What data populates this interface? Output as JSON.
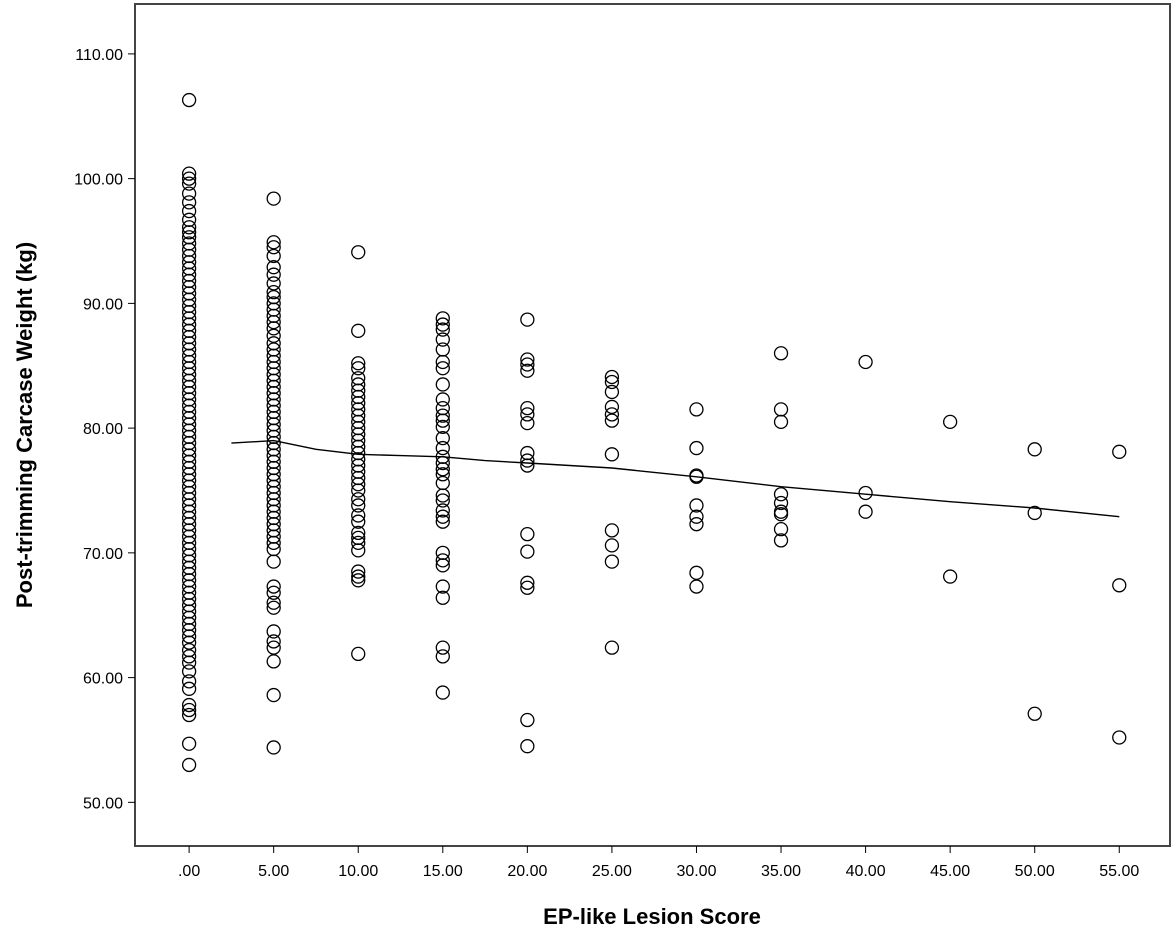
{
  "chart_data": {
    "type": "scatter",
    "title": "",
    "xlabel": "EP-like Lesion Score",
    "ylabel": "Post-trimming Carcase Weight (kg)",
    "xlim": [
      -3.2,
      58.0
    ],
    "ylim": [
      46.5,
      114.0
    ],
    "x_ticks": [
      0,
      5,
      10,
      15,
      20,
      25,
      30,
      35,
      40,
      45,
      50,
      55
    ],
    "x_tick_labels": [
      ".00",
      "5.00",
      "10.00",
      "15.00",
      "20.00",
      "25.00",
      "30.00",
      "35.00",
      "40.00",
      "45.00",
      "50.00",
      "55.00"
    ],
    "y_ticks": [
      50,
      60,
      70,
      80,
      90,
      100,
      110
    ],
    "y_tick_labels": [
      "50.00",
      "60.00",
      "70.00",
      "80.00",
      "90.00",
      "100.00",
      "110.00"
    ],
    "grid": false,
    "legend": "none",
    "marker": "open-circle",
    "colors": {
      "marker": "#000000",
      "line": "#000000",
      "frame": "#444444",
      "background": "#ffffff"
    },
    "series": [
      {
        "type": "scatter",
        "points": [
          [
            0,
            106.3
          ],
          [
            0,
            100.4
          ],
          [
            0,
            100.0
          ],
          [
            0,
            99.6
          ],
          [
            0,
            98.8
          ],
          [
            0,
            98.1
          ],
          [
            0,
            97.4
          ],
          [
            0,
            96.7
          ],
          [
            0,
            96.1
          ],
          [
            0,
            95.7
          ],
          [
            0,
            95.3
          ],
          [
            0,
            94.8
          ],
          [
            0,
            94.3
          ],
          [
            0,
            93.8
          ],
          [
            0,
            93.3
          ],
          [
            0,
            92.8
          ],
          [
            0,
            92.3
          ],
          [
            0,
            91.8
          ],
          [
            0,
            91.3
          ],
          [
            0,
            90.8
          ],
          [
            0,
            90.3
          ],
          [
            0,
            89.8
          ],
          [
            0,
            89.3
          ],
          [
            0,
            88.8
          ],
          [
            0,
            88.3
          ],
          [
            0,
            87.8
          ],
          [
            0,
            87.3
          ],
          [
            0,
            86.8
          ],
          [
            0,
            86.3
          ],
          [
            0,
            85.8
          ],
          [
            0,
            85.3
          ],
          [
            0,
            84.8
          ],
          [
            0,
            84.3
          ],
          [
            0,
            83.8
          ],
          [
            0,
            83.3
          ],
          [
            0,
            82.8
          ],
          [
            0,
            82.3
          ],
          [
            0,
            81.8
          ],
          [
            0,
            81.3
          ],
          [
            0,
            80.8
          ],
          [
            0,
            80.3
          ],
          [
            0,
            79.8
          ],
          [
            0,
            79.3
          ],
          [
            0,
            78.8
          ],
          [
            0,
            78.3
          ],
          [
            0,
            77.8
          ],
          [
            0,
            77.3
          ],
          [
            0,
            76.8
          ],
          [
            0,
            76.3
          ],
          [
            0,
            75.8
          ],
          [
            0,
            75.3
          ],
          [
            0,
            74.8
          ],
          [
            0,
            74.3
          ],
          [
            0,
            73.8
          ],
          [
            0,
            73.3
          ],
          [
            0,
            72.8
          ],
          [
            0,
            72.3
          ],
          [
            0,
            71.8
          ],
          [
            0,
            71.3
          ],
          [
            0,
            70.8
          ],
          [
            0,
            70.3
          ],
          [
            0,
            69.8
          ],
          [
            0,
            69.3
          ],
          [
            0,
            68.8
          ],
          [
            0,
            68.3
          ],
          [
            0,
            67.8
          ],
          [
            0,
            67.3
          ],
          [
            0,
            66.8
          ],
          [
            0,
            66.3
          ],
          [
            0,
            65.8
          ],
          [
            0,
            65.3
          ],
          [
            0,
            64.8
          ],
          [
            0,
            64.3
          ],
          [
            0,
            63.8
          ],
          [
            0,
            63.3
          ],
          [
            0,
            62.8
          ],
          [
            0,
            62.2
          ],
          [
            0,
            61.7
          ],
          [
            0,
            61.2
          ],
          [
            0,
            60.5
          ],
          [
            0,
            59.7
          ],
          [
            0,
            59.1
          ],
          [
            0,
            57.8
          ],
          [
            0,
            57.4
          ],
          [
            0,
            57.0
          ],
          [
            0,
            54.7
          ],
          [
            0,
            53.0
          ],
          [
            5,
            98.4
          ],
          [
            5,
            94.9
          ],
          [
            5,
            94.5
          ],
          [
            5,
            93.8
          ],
          [
            5,
            92.9
          ],
          [
            5,
            92.3
          ],
          [
            5,
            91.6
          ],
          [
            5,
            90.9
          ],
          [
            5,
            90.5
          ],
          [
            5,
            90.0
          ],
          [
            5,
            89.5
          ],
          [
            5,
            89.0
          ],
          [
            5,
            88.5
          ],
          [
            5,
            88.0
          ],
          [
            5,
            87.4
          ],
          [
            5,
            86.8
          ],
          [
            5,
            86.3
          ],
          [
            5,
            85.8
          ],
          [
            5,
            85.3
          ],
          [
            5,
            84.8
          ],
          [
            5,
            84.3
          ],
          [
            5,
            83.8
          ],
          [
            5,
            83.3
          ],
          [
            5,
            82.8
          ],
          [
            5,
            82.3
          ],
          [
            5,
            81.8
          ],
          [
            5,
            81.3
          ],
          [
            5,
            80.8
          ],
          [
            5,
            80.3
          ],
          [
            5,
            79.8
          ],
          [
            5,
            79.3
          ],
          [
            5,
            78.8
          ],
          [
            5,
            78.3
          ],
          [
            5,
            77.8
          ],
          [
            5,
            77.3
          ],
          [
            5,
            76.8
          ],
          [
            5,
            76.3
          ],
          [
            5,
            75.8
          ],
          [
            5,
            75.3
          ],
          [
            5,
            74.8
          ],
          [
            5,
            74.3
          ],
          [
            5,
            73.8
          ],
          [
            5,
            73.3
          ],
          [
            5,
            72.8
          ],
          [
            5,
            72.3
          ],
          [
            5,
            71.8
          ],
          [
            5,
            71.3
          ],
          [
            5,
            70.8
          ],
          [
            5,
            70.3
          ],
          [
            5,
            69.3
          ],
          [
            5,
            67.3
          ],
          [
            5,
            66.8
          ],
          [
            5,
            66.0
          ],
          [
            5,
            65.6
          ],
          [
            5,
            63.7
          ],
          [
            5,
            62.9
          ],
          [
            5,
            62.4
          ],
          [
            5,
            61.3
          ],
          [
            5,
            58.6
          ],
          [
            5,
            54.4
          ],
          [
            10,
            94.1
          ],
          [
            10,
            87.8
          ],
          [
            10,
            85.2
          ],
          [
            10,
            84.8
          ],
          [
            10,
            84.0
          ],
          [
            10,
            83.5
          ],
          [
            10,
            83.0
          ],
          [
            10,
            82.5
          ],
          [
            10,
            82.0
          ],
          [
            10,
            81.5
          ],
          [
            10,
            81.0
          ],
          [
            10,
            80.5
          ],
          [
            10,
            80.0
          ],
          [
            10,
            79.5
          ],
          [
            10,
            79.0
          ],
          [
            10,
            78.5
          ],
          [
            10,
            78.0
          ],
          [
            10,
            77.5
          ],
          [
            10,
            77.0
          ],
          [
            10,
            76.5
          ],
          [
            10,
            76.0
          ],
          [
            10,
            75.5
          ],
          [
            10,
            75.0
          ],
          [
            10,
            74.3
          ],
          [
            10,
            73.8
          ],
          [
            10,
            73.0
          ],
          [
            10,
            72.5
          ],
          [
            10,
            71.6
          ],
          [
            10,
            71.2
          ],
          [
            10,
            70.8
          ],
          [
            10,
            70.2
          ],
          [
            10,
            68.5
          ],
          [
            10,
            68.1
          ],
          [
            10,
            67.8
          ],
          [
            10,
            61.9
          ],
          [
            15,
            88.8
          ],
          [
            15,
            88.3
          ],
          [
            15,
            87.9
          ],
          [
            15,
            87.1
          ],
          [
            15,
            86.3
          ],
          [
            15,
            85.3
          ],
          [
            15,
            84.8
          ],
          [
            15,
            83.5
          ],
          [
            15,
            82.3
          ],
          [
            15,
            81.6
          ],
          [
            15,
            81.0
          ],
          [
            15,
            80.6
          ],
          [
            15,
            80.1
          ],
          [
            15,
            79.2
          ],
          [
            15,
            78.4
          ],
          [
            15,
            77.7
          ],
          [
            15,
            77.2
          ],
          [
            15,
            76.7
          ],
          [
            15,
            76.3
          ],
          [
            15,
            75.6
          ],
          [
            15,
            74.6
          ],
          [
            15,
            74.2
          ],
          [
            15,
            73.4
          ],
          [
            15,
            72.9
          ],
          [
            15,
            72.5
          ],
          [
            15,
            70.0
          ],
          [
            15,
            69.4
          ],
          [
            15,
            69.0
          ],
          [
            15,
            67.3
          ],
          [
            15,
            66.4
          ],
          [
            15,
            62.4
          ],
          [
            15,
            61.7
          ],
          [
            15,
            58.8
          ],
          [
            20,
            88.7
          ],
          [
            20,
            85.5
          ],
          [
            20,
            85.1
          ],
          [
            20,
            84.6
          ],
          [
            20,
            81.6
          ],
          [
            20,
            81.1
          ],
          [
            20,
            80.4
          ],
          [
            20,
            78.0
          ],
          [
            20,
            77.4
          ],
          [
            20,
            77.0
          ],
          [
            20,
            71.5
          ],
          [
            20,
            70.1
          ],
          [
            20,
            67.6
          ],
          [
            20,
            67.2
          ],
          [
            20,
            56.6
          ],
          [
            20,
            54.5
          ],
          [
            25,
            84.1
          ],
          [
            25,
            83.7
          ],
          [
            25,
            82.9
          ],
          [
            25,
            81.7
          ],
          [
            25,
            81.1
          ],
          [
            25,
            80.6
          ],
          [
            25,
            77.9
          ],
          [
            25,
            71.8
          ],
          [
            25,
            70.6
          ],
          [
            25,
            69.3
          ],
          [
            25,
            62.4
          ],
          [
            30,
            81.5
          ],
          [
            30,
            78.4
          ],
          [
            30,
            76.2
          ],
          [
            30,
            76.1
          ],
          [
            30,
            73.8
          ],
          [
            30,
            72.9
          ],
          [
            30,
            72.3
          ],
          [
            30,
            68.4
          ],
          [
            30,
            67.3
          ],
          [
            35,
            86.0
          ],
          [
            35,
            81.5
          ],
          [
            35,
            80.5
          ],
          [
            35,
            74.7
          ],
          [
            35,
            74.0
          ],
          [
            35,
            73.3
          ],
          [
            35,
            73.1
          ],
          [
            35,
            71.9
          ],
          [
            35,
            71.0
          ],
          [
            40,
            85.3
          ],
          [
            40,
            74.8
          ],
          [
            40,
            73.3
          ],
          [
            45,
            80.5
          ],
          [
            45,
            68.1
          ],
          [
            50,
            78.3
          ],
          [
            50,
            73.2
          ],
          [
            50,
            57.1
          ],
          [
            55,
            78.1
          ],
          [
            55,
            67.4
          ],
          [
            55,
            55.2
          ]
        ]
      },
      {
        "type": "line",
        "points": [
          [
            2.5,
            78.8
          ],
          [
            5,
            79.0
          ],
          [
            7.5,
            78.3
          ],
          [
            10,
            77.9
          ],
          [
            12.5,
            77.8
          ],
          [
            15,
            77.7
          ],
          [
            17.5,
            77.4
          ],
          [
            20,
            77.2
          ],
          [
            25,
            76.8
          ],
          [
            30,
            76.1
          ],
          [
            35,
            75.3
          ],
          [
            40,
            74.7
          ],
          [
            45,
            74.1
          ],
          [
            50,
            73.6
          ],
          [
            55,
            72.9
          ]
        ]
      }
    ]
  }
}
